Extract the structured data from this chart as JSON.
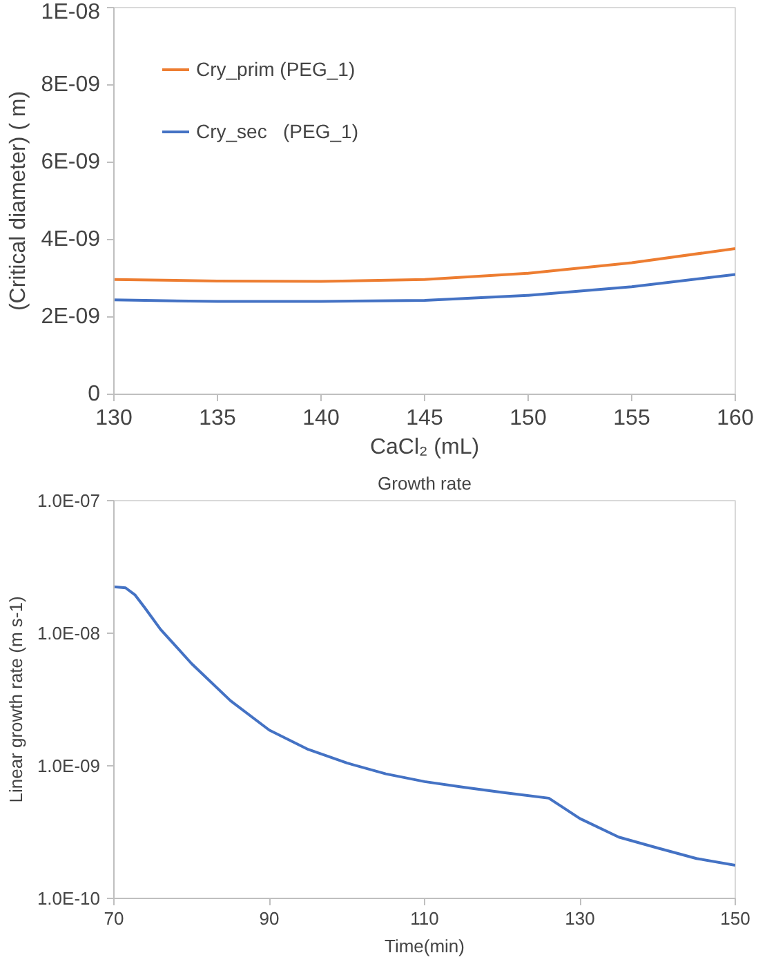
{
  "chart_data": [
    {
      "type": "line",
      "ylabel": "(Critical diameter) ( m)",
      "xlabel": "CaCl₂ (mL)",
      "x": [
        130,
        135,
        140,
        145,
        150,
        155,
        160
      ],
      "series": [
        {
          "name": "Cry_prim (PEG_1)",
          "color": "#ed7d31",
          "values": [
            2.97e-09,
            2.93e-09,
            2.92e-09,
            2.97e-09,
            3.13e-09,
            3.4e-09,
            3.77e-09
          ]
        },
        {
          "name": "Cry_sec   (PEG_1)",
          "color": "#4472c4",
          "values": [
            2.44e-09,
            2.4e-09,
            2.4e-09,
            2.43e-09,
            2.56e-09,
            2.78e-09,
            3.1e-09
          ]
        }
      ],
      "xlim": [
        130,
        160
      ],
      "xticks": [
        130,
        135,
        140,
        145,
        150,
        155,
        160
      ],
      "ylim": [
        0,
        1e-08
      ],
      "yticks": [
        0,
        {
          "value": 2e-09,
          "label": "2E-09"
        },
        {
          "value": 4e-09,
          "label": "4E-09"
        },
        {
          "value": 6e-09,
          "label": "6E-09"
        },
        {
          "value": 8e-09,
          "label": "8E-09"
        },
        {
          "value": 1e-08,
          "label": "1E-08"
        }
      ],
      "grid": false,
      "legend": "top left"
    },
    {
      "type": "line",
      "title": "Growth rate",
      "ylabel": "Linear growth rate (m s-1)",
      "xlabel": "Time(min)",
      "x": [
        70,
        71.5,
        72.7,
        74,
        76,
        80,
        85,
        90,
        95,
        100,
        105,
        110,
        115,
        120,
        126,
        130,
        135,
        140,
        145,
        150
      ],
      "series": [
        {
          "color": "#4472c4",
          "values": [
            2.24e-08,
            2.2e-08,
            1.95e-08,
            1.55e-08,
            1.07e-08,
            5.9e-09,
            3.1e-09,
            1.86e-09,
            1.33e-09,
            1.05e-09,
            8.7e-10,
            7.6e-10,
            6.9e-10,
            6.3e-10,
            5.7e-10,
            4e-10,
            2.9e-10,
            2.4e-10,
            2e-10,
            1.78e-10
          ]
        }
      ],
      "xlim": [
        70,
        150
      ],
      "xticks": [
        70,
        90,
        110,
        130,
        150
      ],
      "ylim": [
        1e-10,
        1e-07
      ],
      "log": "y",
      "yticks": [
        {
          "value": 1e-10,
          "label": "1.0E-10"
        },
        {
          "value": 1e-09,
          "label": "1.0E-09"
        },
        {
          "value": 1e-08,
          "label": "1.0E-08"
        },
        {
          "value": 1e-07,
          "label": "1.0E-07"
        }
      ],
      "grid": false
    }
  ]
}
